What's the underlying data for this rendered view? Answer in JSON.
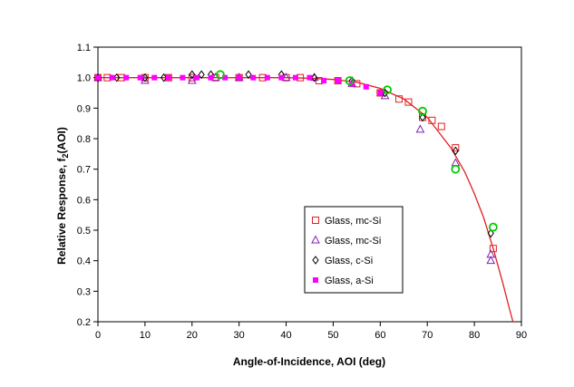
{
  "chart_data": {
    "type": "scatter",
    "title": "",
    "xlabel": "Angle-of-Incidence, AOI (deg)",
    "ylabel_main": "Relative Response, f",
    "ylabel_sub": "2",
    "ylabel_tail": "(AOI)",
    "xlim": [
      0,
      90
    ],
    "ylim": [
      0.2,
      1.1
    ],
    "xticks": [
      "0",
      "10",
      "20",
      "30",
      "40",
      "50",
      "60",
      "70",
      "80",
      "90"
    ],
    "yticks": [
      "0.2",
      "0.3",
      "0.4",
      "0.5",
      "0.6",
      "0.7",
      "0.8",
      "0.9",
      "1.0",
      "1.1"
    ],
    "grid": false,
    "legend_position": "lower-right",
    "colors": {
      "curve": "#e02020",
      "mc_si_square": "#e02020",
      "mc_si_triangle": "#8020b0",
      "c_si": "#000000",
      "a_si": "#ff00ff",
      "green": "#00cc00"
    },
    "series": [
      {
        "name": "Glass, mc-Si",
        "marker": "square-open",
        "color": "#e02020",
        "points": [
          [
            0,
            1.0
          ],
          [
            2,
            1.0
          ],
          [
            5,
            1.0
          ],
          [
            10,
            1.0
          ],
          [
            15,
            1.0
          ],
          [
            20,
            1.0
          ],
          [
            25,
            1.0
          ],
          [
            30,
            1.0
          ],
          [
            35,
            1.0
          ],
          [
            40,
            1.0
          ],
          [
            43,
            1.0
          ],
          [
            47,
            0.99
          ],
          [
            51,
            0.99
          ],
          [
            55,
            0.98
          ],
          [
            60,
            0.95
          ],
          [
            64,
            0.93
          ],
          [
            66,
            0.92
          ],
          [
            69,
            0.87
          ],
          [
            71,
            0.86
          ],
          [
            73,
            0.84
          ],
          [
            76,
            0.77
          ],
          [
            84,
            0.44
          ]
        ]
      },
      {
        "name": "Glass, mc-Si",
        "marker": "triangle-open",
        "color": "#8020b0",
        "points": [
          [
            0,
            1.0
          ],
          [
            10,
            0.99
          ],
          [
            20,
            0.99
          ],
          [
            25,
            1.0
          ],
          [
            30,
            1.0
          ],
          [
            40,
            1.0
          ],
          [
            46,
            1.0
          ],
          [
            54,
            0.98
          ],
          [
            61,
            0.94
          ],
          [
            68.5,
            0.83
          ],
          [
            76,
            0.72
          ],
          [
            83.5,
            0.42
          ],
          [
            83.5,
            0.4
          ]
        ]
      },
      {
        "name": "Glass, c-Si",
        "marker": "diamond-open",
        "color": "#000000",
        "points": [
          [
            0,
            1.0
          ],
          [
            4,
            1.0
          ],
          [
            10,
            1.0
          ],
          [
            14,
            1.0
          ],
          [
            20,
            1.01
          ],
          [
            22,
            1.01
          ],
          [
            24,
            1.01
          ],
          [
            32,
            1.01
          ],
          [
            39,
            1.01
          ],
          [
            46,
            1.0
          ],
          [
            54,
            0.99
          ],
          [
            61,
            0.95
          ],
          [
            69,
            0.87
          ],
          [
            76,
            0.76
          ],
          [
            83.5,
            0.49
          ]
        ]
      },
      {
        "name": "Glass, a-Si",
        "marker": "square-filled",
        "color": "#ff00ff",
        "points": [
          [
            0,
            1.0
          ],
          [
            3,
            1.0
          ],
          [
            6,
            1.0
          ],
          [
            9,
            1.0
          ],
          [
            12,
            1.0
          ],
          [
            15,
            1.0
          ],
          [
            18,
            1.0
          ],
          [
            21,
            1.0
          ],
          [
            24,
            1.0
          ],
          [
            27,
            1.0
          ],
          [
            30,
            1.0
          ],
          [
            33,
            1.0
          ],
          [
            36,
            1.0
          ],
          [
            39,
            1.0
          ],
          [
            42,
            1.0
          ],
          [
            45,
            1.0
          ],
          [
            48,
            0.99
          ],
          [
            51,
            0.99
          ],
          [
            54,
            0.98
          ],
          [
            57,
            0.97
          ],
          [
            60,
            0.95
          ]
        ]
      },
      {
        "name": "",
        "marker": "circle-open",
        "color": "#00cc00",
        "points": [
          [
            26,
            1.01
          ],
          [
            53.5,
            0.99
          ],
          [
            61.5,
            0.96
          ],
          [
            69,
            0.89
          ],
          [
            76,
            0.7
          ],
          [
            84,
            0.51
          ]
        ]
      }
    ],
    "curve_points": [
      [
        0,
        1.0
      ],
      [
        10,
        1.0
      ],
      [
        20,
        1.0
      ],
      [
        30,
        1.0
      ],
      [
        40,
        1.0
      ],
      [
        45,
        0.998
      ],
      [
        50,
        0.994
      ],
      [
        55,
        0.985
      ],
      [
        60,
        0.965
      ],
      [
        65,
        0.93
      ],
      [
        70,
        0.87
      ],
      [
        75,
        0.77
      ],
      [
        78,
        0.69
      ],
      [
        80,
        0.62
      ],
      [
        82,
        0.54
      ],
      [
        84,
        0.44
      ],
      [
        86,
        0.33
      ],
      [
        87.5,
        0.24
      ],
      [
        88.2,
        0.2
      ]
    ]
  }
}
